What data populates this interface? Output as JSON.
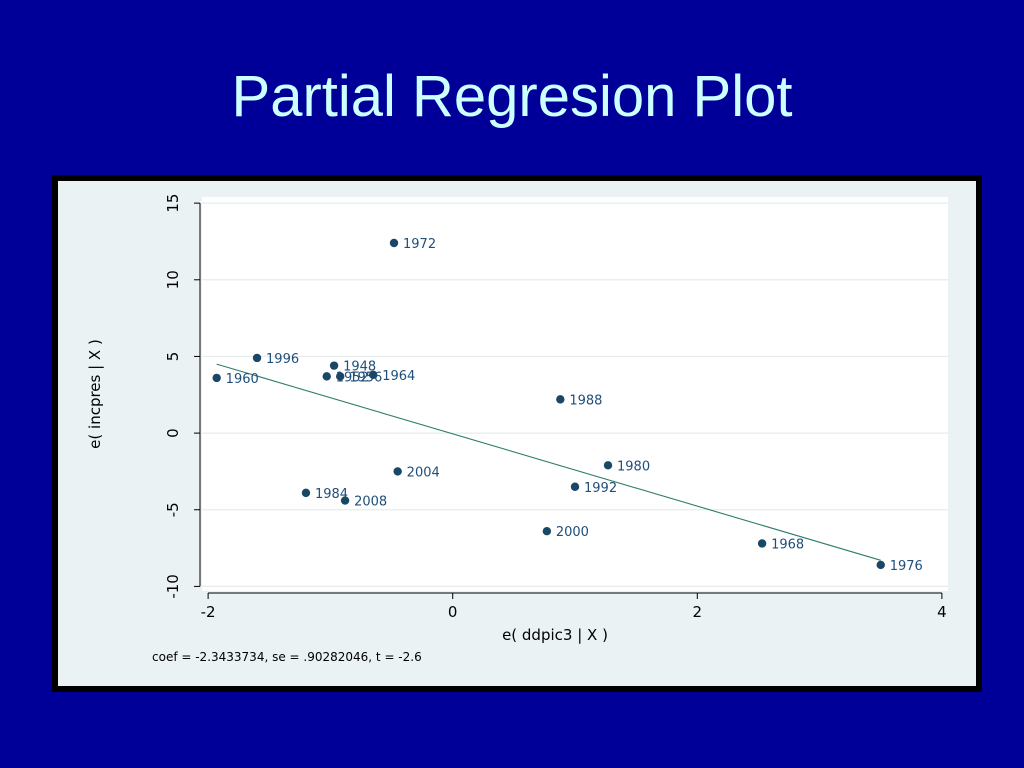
{
  "slide": {
    "title": "Partial Regresion Plot"
  },
  "colors": {
    "background": "#000099",
    "title": "#ccffff",
    "frame": "#000000",
    "plot_region": "#eaf2f3",
    "plot_area": "#ffffff",
    "grid": "#e6ecee",
    "marker": "#1a4766",
    "label": "#1f4e79",
    "fit_line": "#2e7d6b"
  },
  "chart_data": {
    "type": "scatter",
    "title": "",
    "xlabel": "e( ddpic3 | X )",
    "ylabel": "e( incpres | X )",
    "xlim": [
      -2.05,
      4.05
    ],
    "ylim": [
      -10.3,
      15.4
    ],
    "xticks": [
      -2,
      0,
      2,
      4
    ],
    "yticks": [
      -10,
      -5,
      0,
      5,
      10,
      15
    ],
    "grid": true,
    "note": "coef = -2.3433734, se = .90282046, t = -2.6",
    "points": [
      {
        "x": -0.48,
        "y": 12.4,
        "label": "1972"
      },
      {
        "x": -1.6,
        "y": 4.9,
        "label": "1996"
      },
      {
        "x": -0.97,
        "y": 4.4,
        "label": "1948"
      },
      {
        "x": -1.03,
        "y": 3.7,
        "label": "1952"
      },
      {
        "x": -0.92,
        "y": 3.7,
        "label": "1956"
      },
      {
        "x": -0.65,
        "y": 3.8,
        "label": "1964"
      },
      {
        "x": -1.93,
        "y": 3.6,
        "label": "1960"
      },
      {
        "x": 0.88,
        "y": 2.2,
        "label": "1988"
      },
      {
        "x": 1.27,
        "y": -2.1,
        "label": "1980"
      },
      {
        "x": -0.45,
        "y": -2.5,
        "label": "2004"
      },
      {
        "x": 1.0,
        "y": -3.5,
        "label": "1992"
      },
      {
        "x": -1.2,
        "y": -3.9,
        "label": "1984"
      },
      {
        "x": -0.88,
        "y": -4.4,
        "label": "2008"
      },
      {
        "x": 0.77,
        "y": -6.4,
        "label": "2000"
      },
      {
        "x": 2.53,
        "y": -7.2,
        "label": "1968"
      },
      {
        "x": 3.5,
        "y": -8.6,
        "label": "1976"
      }
    ],
    "fit_line": {
      "x": [
        -1.93,
        3.5
      ],
      "y": [
        4.5,
        -8.3
      ]
    }
  }
}
